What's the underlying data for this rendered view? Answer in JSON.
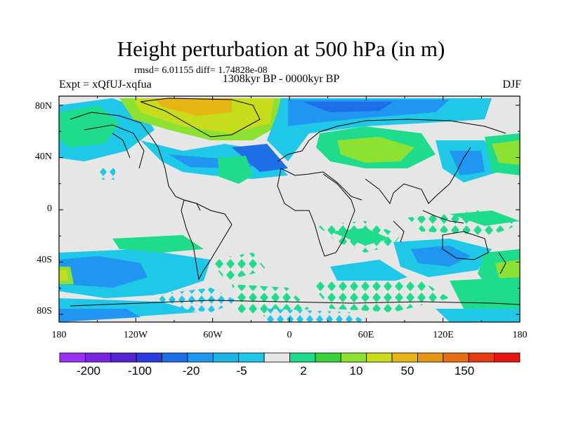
{
  "title": "Height perturbation at 500 hPa (in m)",
  "stats": "rmsd= 6.01155 diff= 1.74828e-08",
  "period": "1308kyr BP - 0000kyr BP",
  "experiment": "Expt = xQfUJ-xqfua",
  "season": "DJF",
  "map": {
    "lon_ticks": [
      "180",
      "120W",
      "60W",
      "0",
      "60E",
      "120E",
      "180"
    ],
    "lat_ticks": [
      "80N",
      "40N",
      "0",
      "40S",
      "80S"
    ],
    "background_color": "#e6e6e6"
  },
  "colorbar": {
    "colors": [
      "#9a32f0",
      "#7a25e0",
      "#5522d4",
      "#2a3ce0",
      "#1e6ee8",
      "#2196f0",
      "#1eb4e6",
      "#1ec8e6",
      "#e6e6e6",
      "#1edc8c",
      "#3cd23c",
      "#8ce132",
      "#c8dc1e",
      "#e6b414",
      "#e69614",
      "#e66e14",
      "#e63c14",
      "#e61414"
    ],
    "labels": [
      "-200",
      "-100",
      "-20",
      "-5",
      "2",
      "10",
      "50",
      "150"
    ]
  }
}
